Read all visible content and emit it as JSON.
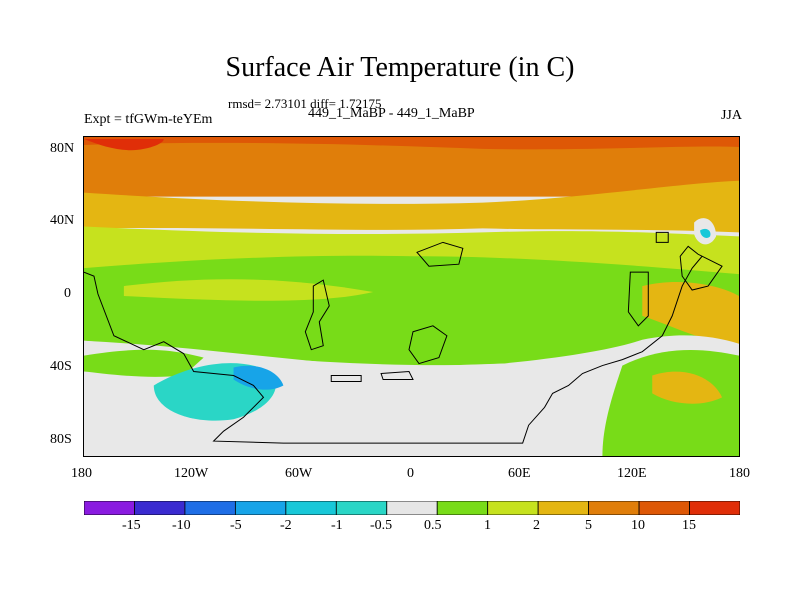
{
  "title": "Surface Air Temperature (in C)",
  "stats_line": "rmsd= 2.73101 diff= 1.72175",
  "left_label": "Expt = tfGWm-teYEm",
  "center_label": "449_1_MaBP - 449_1_MaBP",
  "right_label": "JJA",
  "axes": {
    "y_ticks": [
      "80N",
      "40N",
      "0",
      "40S",
      "80S"
    ],
    "x_ticks": [
      "180",
      "120W",
      "60W",
      "0",
      "60E",
      "120E",
      "180"
    ]
  },
  "colorbar": {
    "labels": [
      "-15",
      "-10",
      "-5",
      "-2",
      "-1",
      "-0.5",
      "0.5",
      "1",
      "2",
      "5",
      "10",
      "15"
    ],
    "colors": [
      "#8a1be0",
      "#3a2bd0",
      "#1f6ee6",
      "#17a4e8",
      "#18c8d8",
      "#2ad6c6",
      "#e6e6e6",
      "#78dc18",
      "#c6e21e",
      "#e4b612",
      "#e07e0a",
      "#de5806",
      "#e02e08"
    ]
  }
}
